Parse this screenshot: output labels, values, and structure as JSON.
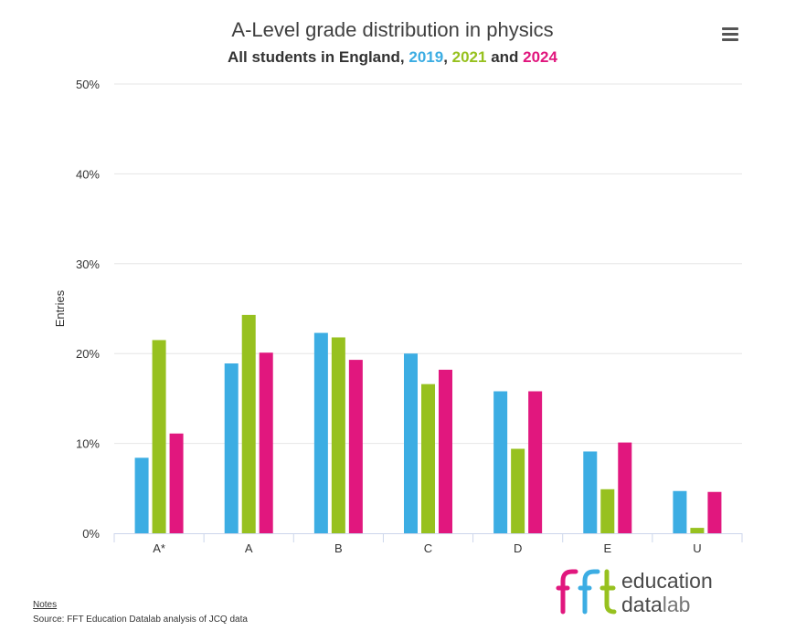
{
  "header": {
    "title": "A-Level grade distribution in physics",
    "subtitle_prefix": "All students in England, ",
    "subtitle_sep1": ", ",
    "subtitle_sep2": " and "
  },
  "footer": {
    "notes_label": "Notes",
    "source": "Source: FFT Education Datalab analysis of JCQ data"
  },
  "logo": {
    "line1": "education",
    "line2a": "data",
    "line2b": "lab"
  },
  "icons": {
    "menu": "hamburger-menu-icon"
  },
  "chart_data": {
    "type": "bar",
    "title": "A-Level grade distribution in physics",
    "ylabel": "Entries",
    "xlabel": "",
    "ylim": [
      0,
      50
    ],
    "yticks": [
      0,
      10,
      20,
      30,
      40,
      50
    ],
    "ytick_labels": [
      "0%",
      "10%",
      "20%",
      "30%",
      "40%",
      "50%"
    ],
    "grid": true,
    "categories": [
      "A*",
      "A",
      "B",
      "C",
      "D",
      "E",
      "U"
    ],
    "series": [
      {
        "name": "2019",
        "color": "#3cade3",
        "values": [
          8.4,
          18.9,
          22.3,
          20.0,
          15.8,
          9.1,
          4.7
        ]
      },
      {
        "name": "2021",
        "color": "#97c11f",
        "values": [
          21.5,
          24.3,
          21.8,
          16.6,
          9.4,
          4.9,
          0.6
        ]
      },
      {
        "name": "2024",
        "color": "#e1177e",
        "values": [
          11.1,
          20.1,
          19.3,
          18.2,
          15.8,
          10.1,
          4.6
        ]
      }
    ]
  }
}
